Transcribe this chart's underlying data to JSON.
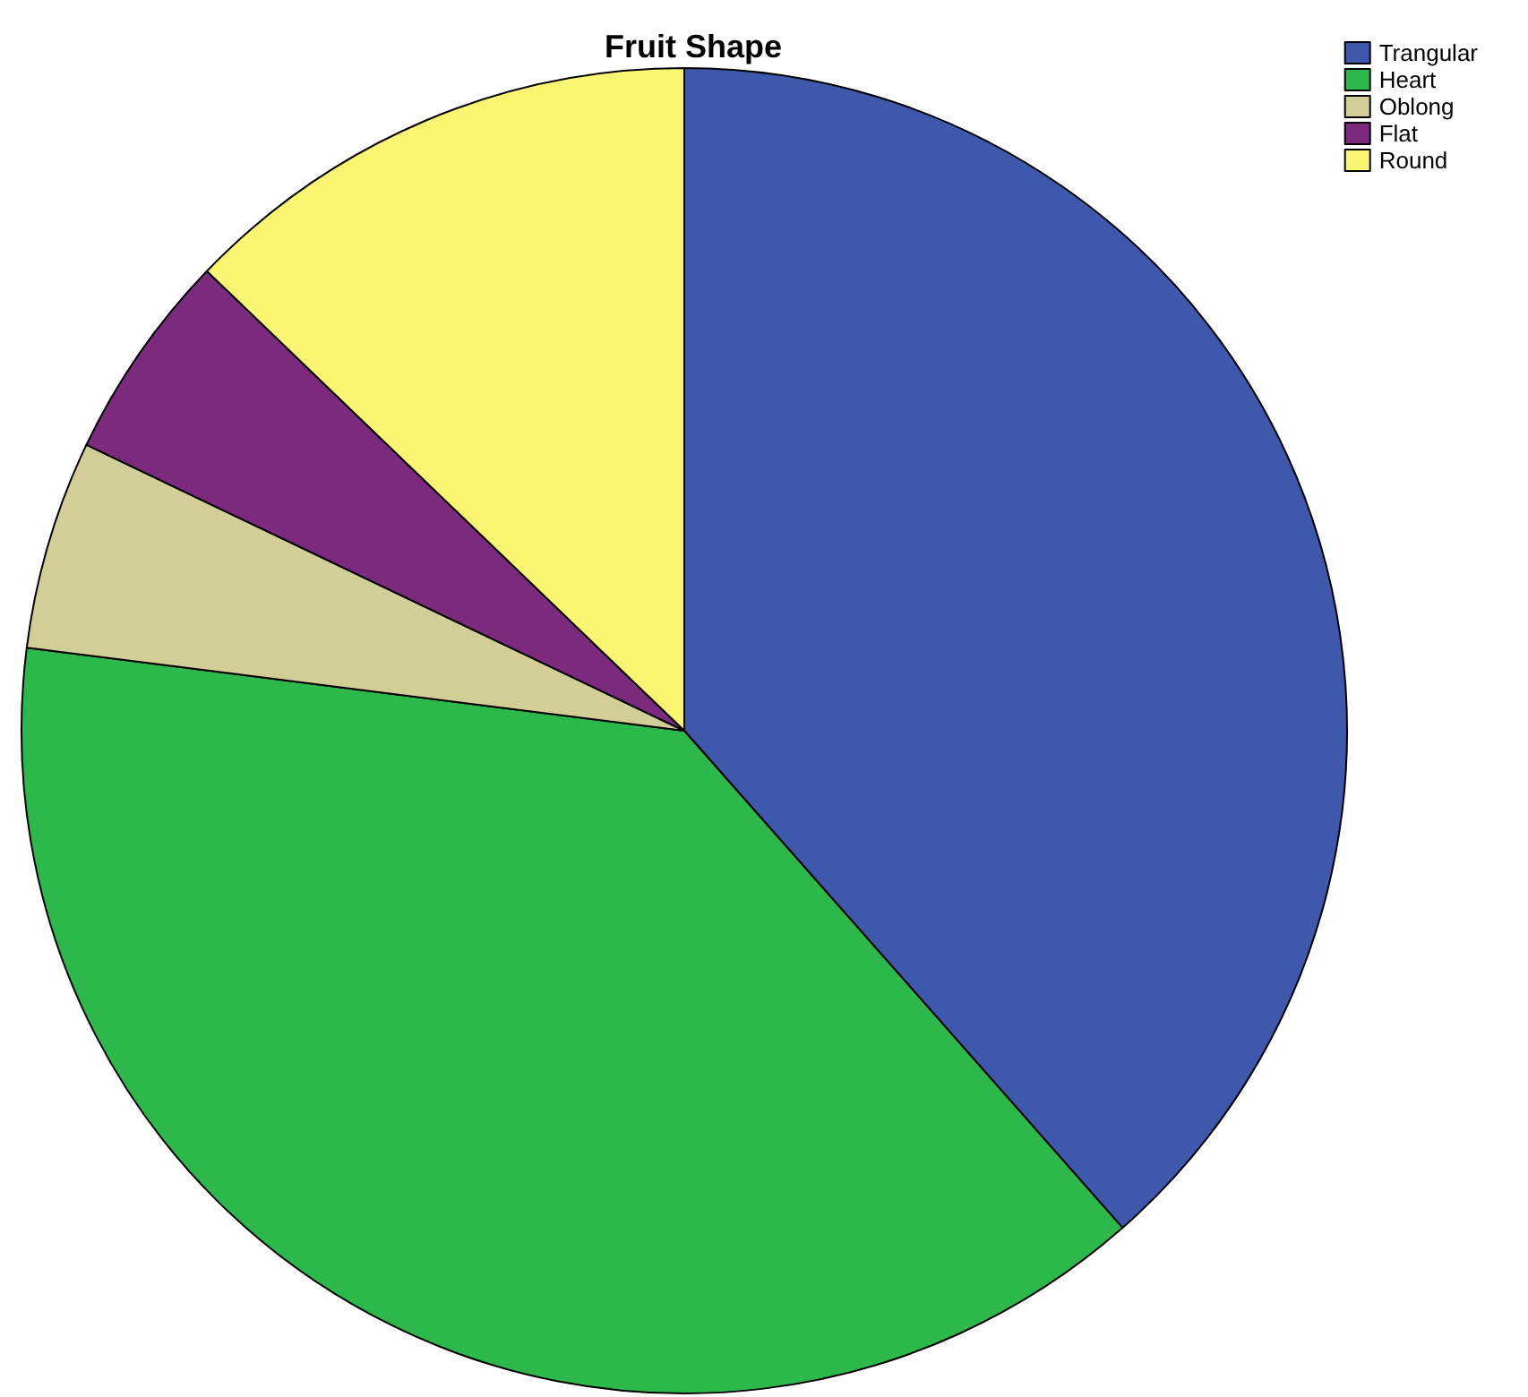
{
  "chart_data": {
    "type": "pie",
    "title": "Fruit Shape",
    "categories": [
      "Trangular",
      "Heart",
      "Oblong",
      "Flat",
      "Round"
    ],
    "values": [
      38.5,
      38.5,
      5.1,
      5.1,
      12.8
    ],
    "colors": [
      "#3e58ac",
      "#2db84b",
      "#d3ce97",
      "#7b2a7d",
      "#fbf574"
    ],
    "legend": "top right"
  }
}
